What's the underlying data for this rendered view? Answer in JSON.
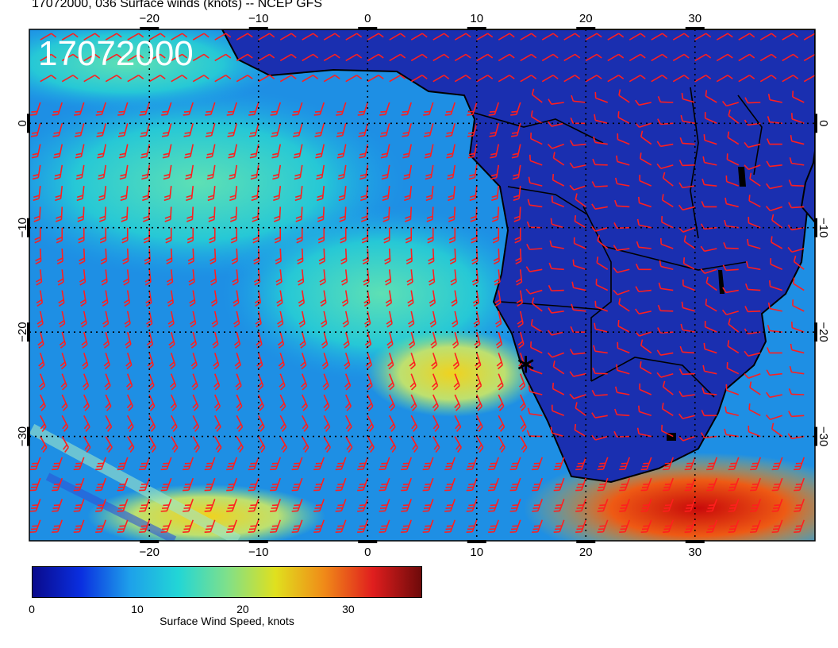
{
  "title": "17072000, 036 Surface winds (knots) -- NCEP GFS",
  "stamp": "17072000",
  "map": {
    "lon_range": [
      -31,
      41
    ],
    "lat_range": [
      -40,
      9
    ],
    "lon_ticks": [
      "−20",
      "−10",
      "0",
      "10",
      "20",
      "30"
    ],
    "lon_tick_values": [
      -20,
      -10,
      0,
      10,
      20,
      30
    ],
    "lat_ticks": [
      "0",
      "−10",
      "−20",
      "−30"
    ],
    "lat_tick_values": [
      0,
      -10,
      -20,
      -30
    ],
    "land_color": "#1a2fb0",
    "barb_color": "#ff1e1e",
    "marker": {
      "lon": 14.5,
      "lat": -23,
      "symbol": "∗"
    }
  },
  "colorbar": {
    "title": "Surface Wind Speed, knots",
    "labels": [
      "0",
      "10",
      "20",
      "30"
    ],
    "label_values": [
      0,
      10,
      20,
      30
    ],
    "range": [
      0,
      37
    ],
    "colors": [
      "#0a0a8c",
      "#0a2fe0",
      "#1ea0ea",
      "#22d6d6",
      "#7fe08a",
      "#e0e01e",
      "#f08a18",
      "#e01e1e",
      "#6e0a0a"
    ]
  }
}
